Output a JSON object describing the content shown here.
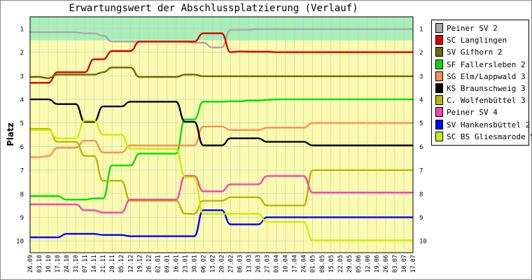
{
  "chart_data": {
    "type": "line",
    "title": "Erwartungswert der Abschlussplatzierung (Verlauf)",
    "ylabel": "Platz",
    "ylim": [
      0.5,
      10.5
    ],
    "y_inverted": true,
    "y_ticks": [
      1,
      2,
      3,
      4,
      5,
      6,
      7,
      8,
      9,
      10
    ],
    "bands": [
      {
        "from": 0.5,
        "to": 1.5,
        "color": "#a8f0b8"
      },
      {
        "from": 1.5,
        "to": 10.5,
        "color": "#fbfbb0"
      }
    ],
    "x": [
      "26.09",
      "03.10",
      "10.10",
      "17.10",
      "24.10",
      "31.10",
      "07.11",
      "14.11",
      "21.11",
      "28.11",
      "05.12",
      "12.12",
      "19.12",
      "26.12",
      "02.01",
      "09.01",
      "16.01",
      "23.01",
      "30.01",
      "06.02",
      "13.02",
      "20.02",
      "27.02",
      "06.03",
      "13.03",
      "20.03",
      "27.03",
      "03.04",
      "10.04",
      "17.04",
      "24.04",
      "01.05",
      "08.05",
      "15.05",
      "22.05",
      "29.05",
      "05.06",
      "12.06",
      "19.06",
      "26.06",
      "03.07",
      "10.07",
      "17.07"
    ],
    "series": [
      {
        "name": "Peiner SV 2",
        "color": "#a8a8a8",
        "values": [
          1.15,
          1.15,
          1.15,
          1.15,
          1.15,
          1.15,
          1.2,
          1.2,
          1.3,
          1.55,
          1.55,
          1.55,
          1.55,
          1.55,
          1.55,
          1.55,
          1.55,
          1.55,
          1.6,
          1.6,
          1.8,
          1.8,
          1.05,
          1.05,
          1.05,
          1.02,
          1.02,
          1.02,
          1.02,
          1.02,
          1.02,
          1.02,
          1.02,
          1.02,
          1.02,
          1.02,
          1.02,
          1.02,
          1.02,
          1.02,
          1.02,
          1.02,
          1.02
        ]
      },
      {
        "name": "SC Langlingen",
        "color": "#e00000",
        "values": [
          3.3,
          3.3,
          3.3,
          2.85,
          2.85,
          2.85,
          2.85,
          2.3,
          2.3,
          1.95,
          1.95,
          1.95,
          1.55,
          1.55,
          1.55,
          1.55,
          1.55,
          1.55,
          1.55,
          1.2,
          1.2,
          1.2,
          2.0,
          1.97,
          1.98,
          1.98,
          1.98,
          2.0,
          2.0,
          2.0,
          2.0,
          2.0,
          2.0,
          2.0,
          2.0,
          2.0,
          2.0,
          2.0,
          2.0,
          2.0,
          2.0,
          2.0,
          2.0
        ]
      },
      {
        "name": "SV Gifhorn 2",
        "color": "#6b6b00",
        "values": [
          3.05,
          3.05,
          3.1,
          2.95,
          2.95,
          2.95,
          2.95,
          2.95,
          2.85,
          2.65,
          2.65,
          2.65,
          3.05,
          3.05,
          3.05,
          3.05,
          3.05,
          2.95,
          2.95,
          3.02,
          3.02,
          3.02,
          3.02,
          3.02,
          3.02,
          3.02,
          3.02,
          3.02,
          3.02,
          3.02,
          3.02,
          3.02,
          3.02,
          3.02,
          3.02,
          3.02,
          3.02,
          3.02,
          3.02,
          3.02,
          3.02,
          3.02,
          3.02
        ]
      },
      {
        "name": "SF Fallersleben 2",
        "color": "#00e000",
        "values": [
          8.1,
          8.1,
          8.1,
          8.1,
          8.25,
          8.25,
          8.25,
          8.2,
          8.2,
          6.8,
          6.8,
          6.8,
          6.3,
          6.3,
          6.3,
          6.3,
          6.3,
          4.85,
          4.85,
          4.1,
          4.1,
          4.1,
          4.08,
          4.08,
          4.05,
          4.05,
          4.02,
          4.0,
          4.0,
          4.0,
          4.0,
          4.0,
          4.0,
          4.0,
          4.0,
          4.0,
          4.0,
          4.0,
          4.0,
          4.0,
          4.0,
          4.0,
          4.0
        ]
      },
      {
        "name": "SG Elm/Lappwald 3",
        "color": "#ff9050",
        "values": [
          6.45,
          6.45,
          6.4,
          6.05,
          6.05,
          6.05,
          5.75,
          5.75,
          6.25,
          6.25,
          6.25,
          5.95,
          5.95,
          5.95,
          5.95,
          5.95,
          5.95,
          5.95,
          5.95,
          5.15,
          5.15,
          5.15,
          5.3,
          5.3,
          5.3,
          5.3,
          5.2,
          5.2,
          5.2,
          5.2,
          5.2,
          5.0,
          5.0,
          5.0,
          5.0,
          5.0,
          5.0,
          5.0,
          5.0,
          5.0,
          5.0,
          5.0,
          5.0
        ]
      },
      {
        "name": "KS Braunschweig 3",
        "color": "#000000",
        "values": [
          4.0,
          4.0,
          4.0,
          4.2,
          4.2,
          4.2,
          4.95,
          4.95,
          4.3,
          4.3,
          4.3,
          4.1,
          4.1,
          4.1,
          4.1,
          4.1,
          4.1,
          4.95,
          4.95,
          5.95,
          5.95,
          5.95,
          5.65,
          5.65,
          5.65,
          5.65,
          5.8,
          5.8,
          5.8,
          5.8,
          5.8,
          5.95,
          5.95,
          5.95,
          5.95,
          5.95,
          5.95,
          5.95,
          5.95,
          5.95,
          5.95,
          5.95,
          5.95
        ]
      },
      {
        "name": "C. Wolfenbüttel 3",
        "color": "#b8b800",
        "values": [
          5.25,
          5.25,
          5.25,
          5.8,
          5.8,
          5.8,
          6.4,
          6.4,
          7.45,
          7.45,
          7.45,
          8.3,
          8.3,
          8.3,
          8.3,
          8.3,
          8.3,
          8.85,
          8.85,
          8.3,
          8.3,
          8.3,
          8.15,
          8.15,
          8.15,
          8.15,
          8.5,
          8.5,
          8.5,
          8.5,
          8.5,
          7.0,
          7.0,
          7.0,
          7.0,
          7.0,
          7.0,
          7.0,
          7.0,
          7.0,
          7.0,
          7.0,
          7.0
        ]
      },
      {
        "name": "Peiner SV 4",
        "color": "#ff40b0",
        "values": [
          8.45,
          8.45,
          8.45,
          8.45,
          8.45,
          8.45,
          8.7,
          8.7,
          8.8,
          8.8,
          8.8,
          8.25,
          8.25,
          8.25,
          8.25,
          8.25,
          8.25,
          7.25,
          7.25,
          7.9,
          7.9,
          7.9,
          7.6,
          7.6,
          7.6,
          7.6,
          7.25,
          7.25,
          7.25,
          7.25,
          7.25,
          7.95,
          7.95,
          7.95,
          7.95,
          7.95,
          7.95,
          7.95,
          7.95,
          7.95,
          7.95,
          7.95,
          7.95
        ]
      },
      {
        "name": "SV Hankensbüttel 2",
        "color": "#0000ff",
        "values": [
          9.85,
          9.85,
          9.85,
          9.85,
          9.7,
          9.7,
          9.7,
          9.7,
          9.75,
          9.75,
          9.75,
          9.8,
          9.8,
          9.8,
          9.8,
          9.8,
          9.8,
          9.8,
          9.8,
          8.7,
          8.7,
          8.7,
          9.3,
          9.3,
          9.3,
          9.3,
          9.0,
          9.0,
          9.0,
          9.0,
          9.0,
          9.0,
          9.0,
          9.0,
          9.0,
          9.0,
          9.0,
          9.0,
          9.0,
          9.0,
          9.0,
          9.0,
          9.0
        ]
      },
      {
        "name": "SC BS Gliesmarode 5",
        "color": "#c8f000",
        "values": [
          5.3,
          5.3,
          5.3,
          5.65,
          5.65,
          5.65,
          4.9,
          4.9,
          5.5,
          5.5,
          5.5,
          6.1,
          6.1,
          6.1,
          6.1,
          6.1,
          6.1,
          7.3,
          7.3,
          8.85,
          8.85,
          8.85,
          8.85,
          8.85,
          8.85,
          8.85,
          9.2,
          9.2,
          9.2,
          9.2,
          9.2,
          9.98,
          9.98,
          9.98,
          9.98,
          9.98,
          9.98,
          9.98,
          9.98,
          9.98,
          9.98,
          9.98,
          9.98
        ]
      }
    ]
  }
}
